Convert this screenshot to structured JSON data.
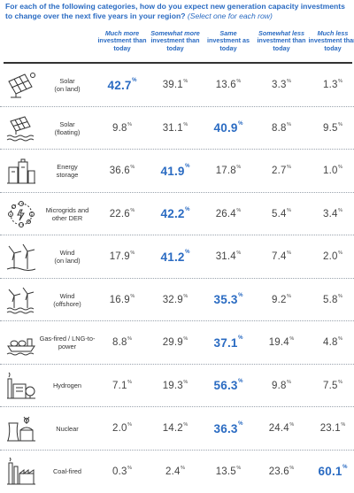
{
  "question": {
    "main": "For each of the following categories, how do you expect new generation capacity investments to change over the next five years in your region?",
    "hint": "(Select one for each row)"
  },
  "columns": [
    {
      "l1": "Much more",
      "l2": "investment than today"
    },
    {
      "l1": "Somewhat more",
      "l2": "investment than today"
    },
    {
      "l1": "Same",
      "l2": "investment as today"
    },
    {
      "l1": "Somewhat less",
      "l2": "investment than today"
    },
    {
      "l1": "Much less",
      "l2": "investment than today"
    }
  ],
  "pct_symbol": "%",
  "chart_data": {
    "type": "table",
    "columns": [
      "Much more investment than today",
      "Somewhat more investment than today",
      "Same investment as today",
      "Somewhat less investment than today",
      "Much less investment than today"
    ],
    "unit": "%",
    "rows": [
      {
        "label_lines": [
          "Solar",
          "(on land)"
        ],
        "icon": "solar-panel-icon",
        "values": [
          42.7,
          39.1,
          13.6,
          3.3,
          1.3
        ],
        "highlight": 0
      },
      {
        "label_lines": [
          "Solar",
          "(floating)"
        ],
        "icon": "floating-solar-icon",
        "values": [
          9.8,
          31.1,
          40.9,
          8.8,
          9.5
        ],
        "highlight": 2
      },
      {
        "label_lines": [
          "Energy",
          "storage"
        ],
        "icon": "energy-storage-icon",
        "values": [
          36.6,
          41.9,
          17.8,
          2.7,
          1.0
        ],
        "highlight": 1
      },
      {
        "label_lines": [
          "Microgrids and",
          "other DER"
        ],
        "icon": "microgrid-icon",
        "values": [
          22.6,
          42.2,
          26.4,
          5.4,
          3.4
        ],
        "highlight": 1
      },
      {
        "label_lines": [
          "Wind",
          "(on land)"
        ],
        "icon": "wind-turbine-icon",
        "values": [
          17.9,
          41.2,
          31.4,
          7.4,
          2.0
        ],
        "highlight": 1
      },
      {
        "label_lines": [
          "Wind",
          "(offshore)"
        ],
        "icon": "offshore-wind-icon",
        "values": [
          16.9,
          32.9,
          35.3,
          9.2,
          5.8
        ],
        "highlight": 2
      },
      {
        "label_lines": [
          "Gas-fired / LNG-to-",
          "power"
        ],
        "icon": "lng-ship-icon",
        "values": [
          8.8,
          29.9,
          37.1,
          19.4,
          4.8
        ],
        "highlight": 2
      },
      {
        "label_lines": [
          "Hydrogen"
        ],
        "icon": "hydrogen-plant-icon",
        "values": [
          7.1,
          19.3,
          56.3,
          9.8,
          7.5
        ],
        "highlight": 2
      },
      {
        "label_lines": [
          "Nuclear"
        ],
        "icon": "nuclear-plant-icon",
        "values": [
          2.0,
          14.2,
          36.3,
          24.4,
          23.1
        ],
        "highlight": 2
      },
      {
        "label_lines": [
          "Coal-fired"
        ],
        "icon": "coal-plant-icon",
        "values": [
          0.3,
          2.4,
          13.5,
          23.6,
          60.1
        ],
        "highlight": 4
      }
    ]
  },
  "colors": {
    "accent": "#2a6bc2",
    "text": "#444444",
    "rule": "#333333"
  }
}
